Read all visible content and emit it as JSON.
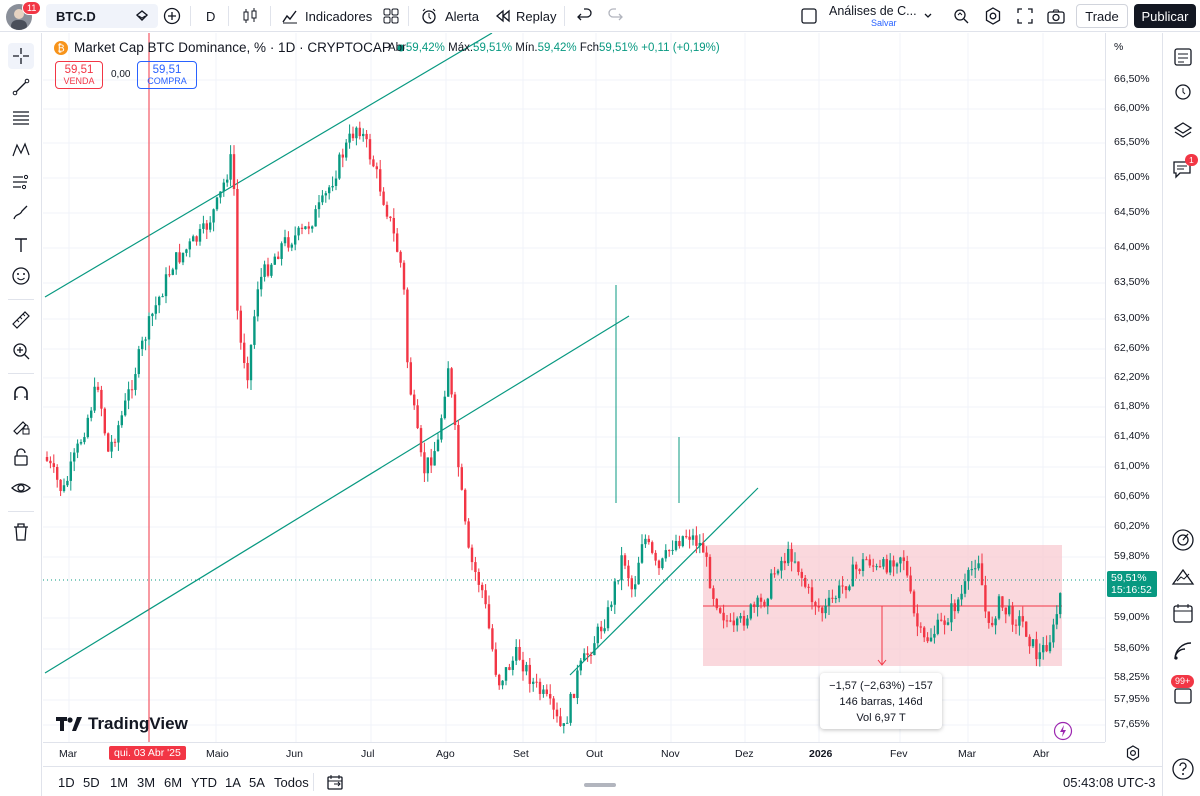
{
  "topbar": {
    "avatar_badge": "11",
    "symbol": "BTC.D",
    "interval": "D",
    "indicators": "Indicadores",
    "alert": "Alerta",
    "replay": "Replay",
    "layout_title": "Análises de C...",
    "layout_sub": "Salvar",
    "trade": "Trade",
    "publish": "Publicar"
  },
  "legend": {
    "title": "Market Cap BTC Dominance, % · 1D · CRYPTOCAP",
    "open_label": "Abr",
    "open": "59,42%",
    "high_label": "Máx.",
    "high": "59,51%",
    "low_label": "Mín.",
    "low": "59,42%",
    "close_label": "Fch",
    "close": "59,51%",
    "change": "+0,11 (+0,19%)"
  },
  "trade_boxes": {
    "sell_value": "59,51",
    "sell_label": "VENDA",
    "spread": "0,00",
    "buy_value": "59,51",
    "buy_label": "COMPRA"
  },
  "price_axis": {
    "unit": "%",
    "labels": [
      "66,50%",
      "66,00%",
      "65,50%",
      "65,00%",
      "64,50%",
      "64,00%",
      "63,50%",
      "63,00%",
      "62,60%",
      "62,20%",
      "61,80%",
      "61,40%",
      "61,00%",
      "60,60%",
      "60,20%",
      "59,80%",
      "59,00%",
      "58,60%",
      "58,25%",
      "57,95%",
      "57,65%"
    ],
    "current_price": "59,51%",
    "countdown": "15:16:52"
  },
  "time_axis": {
    "labels": [
      "Mar",
      "Maio",
      "Jun",
      "Jul",
      "Ago",
      "Set",
      "Out",
      "Nov",
      "Dez",
      "2026",
      "Fev",
      "Mar",
      "Abr"
    ],
    "crosshair_date": "qui. 03 Abr '25"
  },
  "measure": {
    "line1": "−1,57 (−2,63%) −157",
    "line2": "146 barras, 146d",
    "line3": "Vol 6,97 T"
  },
  "logo": "TradingView",
  "bottombar": {
    "ranges": [
      "1D",
      "5D",
      "1M",
      "3M",
      "6M",
      "YTD",
      "1A",
      "5A",
      "Todos"
    ],
    "clock": "05:43:08 UTC-3"
  },
  "right_badges": {
    "notifications": "1",
    "messages": "99+"
  },
  "colors": {
    "up": "#089981",
    "down": "#f23645",
    "accent": "#2962ff",
    "trendline": "#089981",
    "range_fill": "#f8c8cf"
  }
}
